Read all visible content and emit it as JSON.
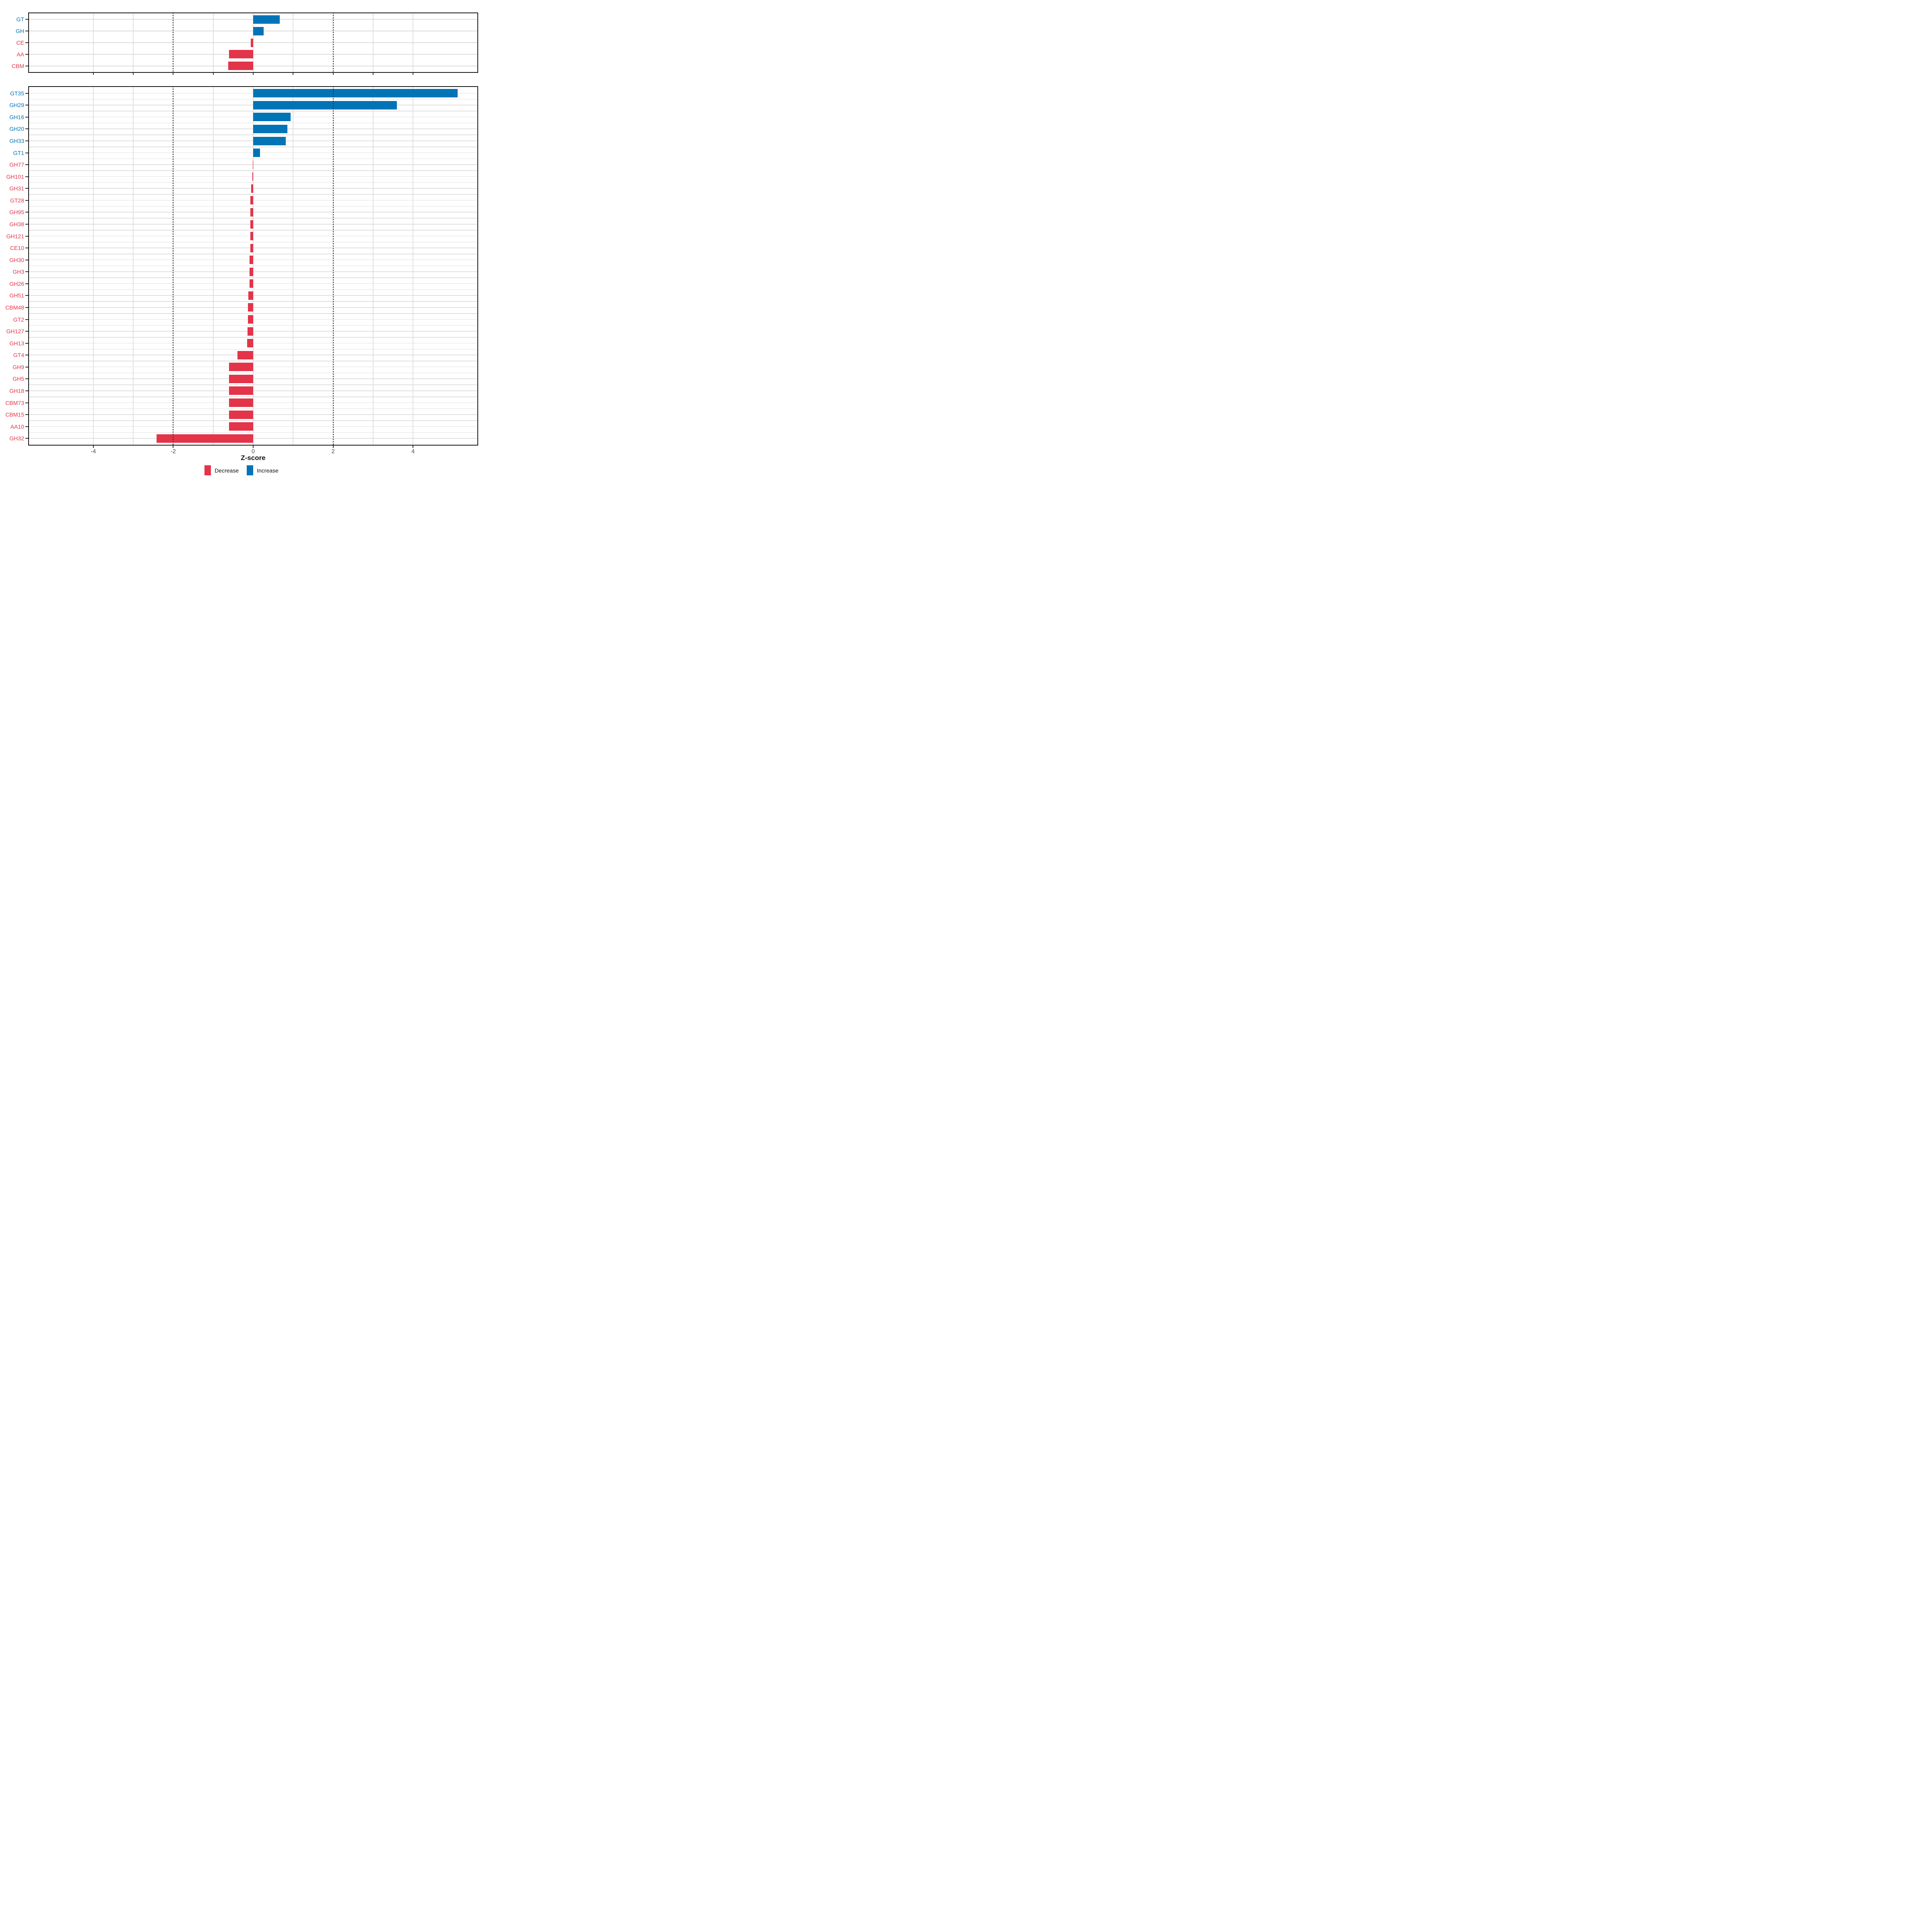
{
  "chart_data": {
    "type": "bar",
    "orientation": "horizontal",
    "title": "",
    "xlabel": "Z-score",
    "ylabel": "",
    "xlim": [
      -5.63,
      5.63
    ],
    "grid": true,
    "gridline_integers": [
      -4,
      -3,
      -2,
      -1,
      0,
      1,
      2,
      3,
      4
    ],
    "reference_lines_dashed": [
      -2,
      2
    ],
    "x_ticks": [
      {
        "value": -4,
        "label": "-4"
      },
      {
        "value": -2,
        "label": "-2"
      },
      {
        "value": 0,
        "label": "0"
      },
      {
        "value": 2,
        "label": "2"
      },
      {
        "value": 4,
        "label": "4"
      }
    ],
    "colors": {
      "increase": "#0074b6",
      "decrease": "#e33449",
      "axis_text": "#4d4d4d",
      "label_increase": "#0074b6",
      "label_decrease": "#e33449"
    },
    "legend": {
      "position": "bottom",
      "items": [
        {
          "label": "Decrease",
          "color": "#e33449"
        },
        {
          "label": "Increase",
          "color": "#0074b6"
        }
      ]
    },
    "panels": [
      {
        "name": "enzyme-class-summary",
        "categories": [
          "GT",
          "GH",
          "CE",
          "AA",
          "CBM"
        ],
        "values": [
          0.66,
          0.26,
          -0.06,
          -0.6,
          -0.62
        ]
      },
      {
        "name": "enzyme-family-detail",
        "categories": [
          "GT35",
          "GH29",
          "GH16",
          "GH20",
          "GH33",
          "GT1",
          "GH77",
          "GH101",
          "GH31",
          "GT28",
          "GH95",
          "GH38",
          "GH121",
          "CE10",
          "GH30",
          "GH3",
          "GH26",
          "GH51",
          "CBM48",
          "GT2",
          "GH127",
          "GH13",
          "GT4",
          "GH9",
          "GH5",
          "GH18",
          "CBM73",
          "CBM15",
          "AA10",
          "GH32"
        ],
        "values": [
          5.12,
          3.6,
          0.94,
          0.86,
          0.82,
          0.17,
          -0.01,
          -0.02,
          -0.05,
          -0.07,
          -0.07,
          -0.07,
          -0.07,
          -0.07,
          -0.09,
          -0.09,
          -0.09,
          -0.12,
          -0.13,
          -0.13,
          -0.14,
          -0.15,
          -0.39,
          -0.6,
          -0.6,
          -0.6,
          -0.6,
          -0.6,
          -0.6,
          -2.42
        ]
      }
    ]
  }
}
